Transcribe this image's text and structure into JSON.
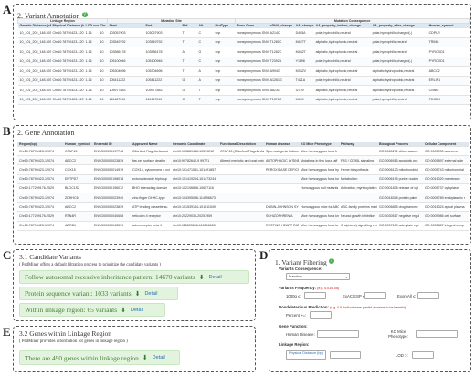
{
  "letters": {
    "a": "A",
    "b": "B",
    "c": "C",
    "d": "D",
    "e": "E"
  },
  "colors": {
    "accent_green": "#4caf50",
    "box_green": "#e2f4dd",
    "link_blue": "#2a6db0",
    "header_blue": "#dde7f2"
  },
  "variant_annotation": {
    "title": "2. Variant Annotation",
    "help_icon": "question-circle-icon",
    "group_headers": [
      "Linkage Region",
      "Mutation Site",
      "Mutation Consequence"
    ],
    "columns": [
      "Genetic Distance (cM)",
      "Physical Distance (bp)",
      "LOD score",
      "Chr",
      "Start",
      "End",
      "Ref",
      "Alt",
      "MutType",
      "Func.Gene",
      "cDNA_change",
      "AA_change",
      "AA_property_before_change",
      "AA_property_after_change",
      "Human_symbol"
    ],
    "rows": [
      [
        "10_101_202_148.393",
        "Chr10:78790423-12074",
        "1.16",
        "10",
        "103057903",
        "103057903",
        "T",
        "C",
        "snp",
        "nonsynonymous SNV",
        "A214C",
        "D405A",
        "polar,hydrophilic,neutral",
        "polar,hydrophilic,charged(-)",
        "CDPLR"
      ],
      [
        "10_101_202_148.393",
        "Chr10:78790423-12074",
        "1.16",
        "10",
        "103549792",
        "103549792",
        "T",
        "C",
        "snp",
        "nonsynonymous SNV",
        "T1280C",
        "M427T",
        "aliphatic,hydrophobic,neutral",
        "polar,hydrophilic,neutral",
        "TRIM8"
      ],
      [
        "10_101_202_148.393",
        "Chr10:78790423-12074",
        "1.16",
        "10",
        "103586178",
        "103586178",
        "A",
        "G",
        "snp",
        "nonsynonymous SNV",
        "T1282C",
        "M482T",
        "aliphatic,hydrophobic,neutral",
        "polar,hydrophilic,neutral",
        "PYROXD1"
      ],
      [
        "10_101_202_148.393",
        "Chr10:78790423-12074",
        "1.16",
        "10",
        "105100946",
        "105100946",
        "T",
        "C",
        "snp",
        "nonsynonymous SNV",
        "T2392A",
        "Y1198",
        "polar,hydrophilic,neutral",
        "polar,hydrophilic,charged(-)",
        "PYROXD1"
      ],
      [
        "10_101_202_148.393",
        "Chr10:78790423-12074",
        "1.16",
        "10",
        "105304696",
        "105304696",
        "T",
        "A",
        "snp",
        "nonsynonymous SNV",
        "A994G",
        "M332V",
        "aliphatic,hydrophobic,neutral",
        "aliphatic,hydrophobic,neutral",
        "ABCC2"
      ],
      [
        "10_101_202_148.393",
        "Chr10:78790423-12074",
        "1.16",
        "10",
        "105411222",
        "105411222",
        "G",
        "A",
        "snp",
        "nonsynonymous SNV",
        "A1261G",
        "T421A",
        "polar,hydrophilic,neutral",
        "aliphatic,hydrophobic,neutral",
        "ERLIN1"
      ],
      [
        "10_101_202_148.393",
        "Chr10:78790423-12074",
        "1.16",
        "10",
        "105977883",
        "105977883",
        "G",
        "T",
        "snp",
        "nonsynonymous SNV",
        "A823G",
        "I275V",
        "aliphatic,hydrophobic,neutral",
        "aliphatic,hydrophobic,neutral",
        "CNNM"
      ],
      [
        "10_101_202_148.393",
        "Chr10:78790423-12074",
        "1.16",
        "10",
        "110487010",
        "110487010",
        "C",
        "T",
        "snp",
        "nonsynonymous SNV",
        "T1376C",
        "M459",
        "aliphatic,hydrophobic,neutral",
        "polar,hydrophilic,neutral",
        "PDCD4"
      ]
    ]
  },
  "gene_annotation": {
    "title": "2. Gene Annotation",
    "columns": [
      "Region(bp)",
      "Human_symbol",
      "Ensembl ID",
      "Approved Name",
      "Genomic Coordinate",
      "Functional Description",
      "Human disease",
      "KO Mice Phenotype",
      "Pathway",
      "Biological Process",
      "Cellular Component"
    ],
    "rows": [
      [
        "Chr10:78790423-12074",
        "CFAP43",
        "ENSG00000197748",
        "Cilia And Flagella Associ",
        "chr10:103889446-10599212",
        "CFAP43 (Cilia And Flagella Associa",
        "Spermatogenic Failure",
        "Mice homozygous for a k",
        "",
        "GO:0060271 cilium assem",
        "GO:0005930 axoneme"
      ],
      [
        "Chr10:78790423-12074",
        "ABCC2",
        "ENSG00000023839",
        "fas cell surface death r",
        "chr10:99782640-9 99771",
        "Altered mesiotic and post meiotic a",
        "AUTOPHAGIC LYSINE",
        "Mutations in this locus aff",
        "FAS / CD95L signaling",
        "GO:0006915 apoptotic pro",
        "GO:0009897 external side"
      ],
      [
        "Chr10:78790423-12074",
        "COX15",
        "ENSG00000014919",
        "COX15, cytochrome c oxi",
        "chr10:101471581-101491857",
        "",
        "PEROXIDASE DEFICIENCY",
        "Mice homozygous for a hy",
        "Heme biosynthesis",
        "GO:0006123 mitochondrial",
        "GO:0005743 mitochondrial"
      ],
      [
        "Chr10:78790423-12074",
        "ENTPD7",
        "ENSG00000198018",
        "ectonucleoside triphosp",
        "chr10:101419264-101473244",
        "",
        "",
        "Mice homozygous for a kn",
        "Metabolism",
        "GO:0006195 purine nucleo",
        "GO:0016020 membrane"
      ],
      [
        "Chr10:177209176-2529",
        "BLOC1S2",
        "ENSG00000196072",
        "BHO interacting domain",
        "chr10:102106896-10657116",
        "",
        "",
        "Homozygous null mutants",
        "Activation, myristoylation",
        "GO:0001836 release of cyt",
        "GO:0005737 cytoplasm"
      ],
      [
        "Chr10:78790423-12074",
        "ZDHHC6",
        "ENSG00000023940",
        "zinc finger DHHC-type",
        "chr10:104395036-114596673",
        "",
        "",
        "",
        "",
        "GO:0018345 protein palmi",
        "GO:0005789 endoplasmic r"
      ],
      [
        "Chr10:78790423-12074",
        "ABCC2",
        "ENSG00000023839",
        "ATP binding cassette su",
        "chr10:101539144-101611549",
        "",
        "DUBIN-JOHNSON SYND",
        "Homozygous mice for ABC",
        "ABC-family proteins med",
        "GO:0006855 drug transme",
        "GO:0016324 apical plasma"
      ],
      [
        "Chr10:177209176-2529",
        "RTN4R",
        "ENSG00000040608",
        "reticulon 4 receptor",
        "chr10:20229036-20257959",
        "",
        "SCHIZOPHRENIA",
        "Mice homozygous for a kn",
        "Neural growth inhibition",
        "GO:0030517 negative regul",
        "GO:0009986 cell surface"
      ],
      [
        "Chr10:78790423-12074",
        "ADRB1",
        "ENSG00000043591",
        "adrenoceptor beta 1",
        "chr10:115803806-115806663",
        "",
        "RESTING HEART RATE",
        "Mice homozygous for a ta",
        "G alpha (s) signalling ever",
        "GO:0007189 adenylate cyc",
        "GO:0005887 integral comp"
      ]
    ]
  },
  "candidate_variants": {
    "title": "3.1 Candidate Variants",
    "note": "( PedMiner offers a default filtration process to prioritize the candidate variants )",
    "items": [
      {
        "text": "Follow autosomal recessive inheritance pattern: 14670 variants",
        "link": "Detail"
      },
      {
        "text": "Protein sequence variant: 1033 variants",
        "link": "Detail"
      },
      {
        "text": "Within linkage region: 65 variants",
        "link": "Detail"
      }
    ],
    "download_icon": "download-icon"
  },
  "genes_linkage": {
    "title": "3.2 Genes within Linkage Region",
    "note": "( PedMiner provides information for genes in linkage region )",
    "item": {
      "text": "There are 490 genes within linkage region",
      "link": "Detail"
    }
  },
  "variant_filtering": {
    "title": "1. Variant Filtering",
    "help_icon": "question-circle-icon",
    "consequence_label": "Variants Consequence:",
    "consequence_value": "Function",
    "frequency_label": "Variants Frequency:",
    "frequency_hint": "(e.g. 0.01/0.05)",
    "freq_fields": [
      "1000g ≤:",
      "ExAC/ESP ≤:",
      "ExomAll ≤:"
    ],
    "nonsense_label": "Nondeleterious Prediction:",
    "nonsense_hint": "(e.g. 0.5, half software predict a variant to be harmful)",
    "percent_label": "Percent >=:",
    "gene_function_label": "Gene Function:",
    "human_disease_label": "Human Disease:",
    "ko_mice_label": "KO Mice Phenotype:",
    "linkage_label": "Linkage Region:",
    "physical_label": "Physical Distance (bp)",
    "lod_label": "LOD >:"
  }
}
